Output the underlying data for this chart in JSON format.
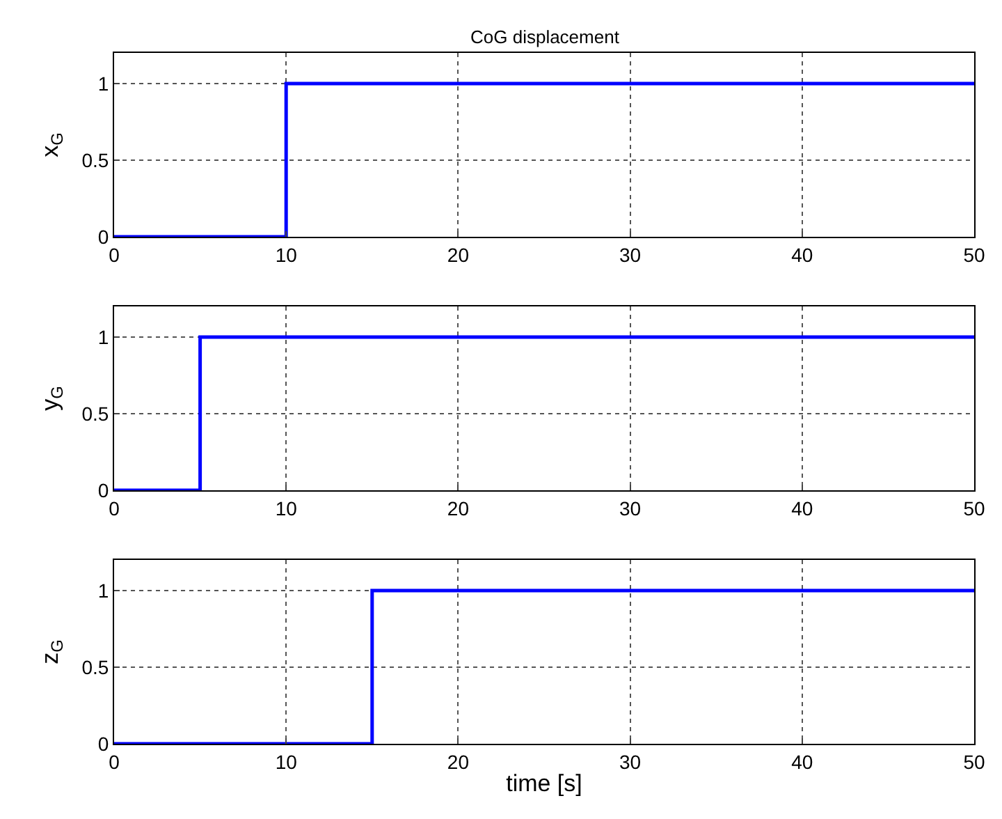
{
  "chart_data": [
    {
      "type": "step",
      "title": "CoG displacement",
      "ylabel": "x$_{G}$",
      "x": [
        0,
        10,
        50
      ],
      "series": [
        {
          "color": "#0000ff",
          "values": [
            0,
            1,
            1
          ]
        }
      ],
      "xlim": [
        0,
        50
      ],
      "xticks": [
        0,
        10,
        20,
        30,
        40,
        50
      ],
      "ylim": [
        0,
        1.2
      ],
      "yticks": [
        0,
        0.5,
        1
      ],
      "grid": true,
      "line_style": "solid",
      "marker": "none"
    },
    {
      "type": "step",
      "ylabel": "y$_{G}$",
      "x": [
        0,
        5,
        50
      ],
      "series": [
        {
          "color": "#0000ff",
          "values": [
            0,
            1,
            1
          ]
        }
      ],
      "xlim": [
        0,
        50
      ],
      "xticks": [
        0,
        10,
        20,
        30,
        40,
        50
      ],
      "ylim": [
        0,
        1.2
      ],
      "yticks": [
        0,
        0.5,
        1
      ],
      "grid": true,
      "line_style": "solid",
      "marker": "none"
    },
    {
      "type": "step",
      "xlabel": "time [s]",
      "ylabel": "z$_{G}$",
      "x": [
        0,
        15,
        50
      ],
      "series": [
        {
          "color": "#0000ff",
          "values": [
            0,
            1,
            1
          ]
        }
      ],
      "xlim": [
        0,
        50
      ],
      "xticks": [
        0,
        10,
        20,
        30,
        40,
        50
      ],
      "ylim": [
        0,
        1.2
      ],
      "yticks": [
        0,
        0.5,
        1
      ],
      "grid": true,
      "line_style": "solid",
      "marker": "none"
    }
  ]
}
